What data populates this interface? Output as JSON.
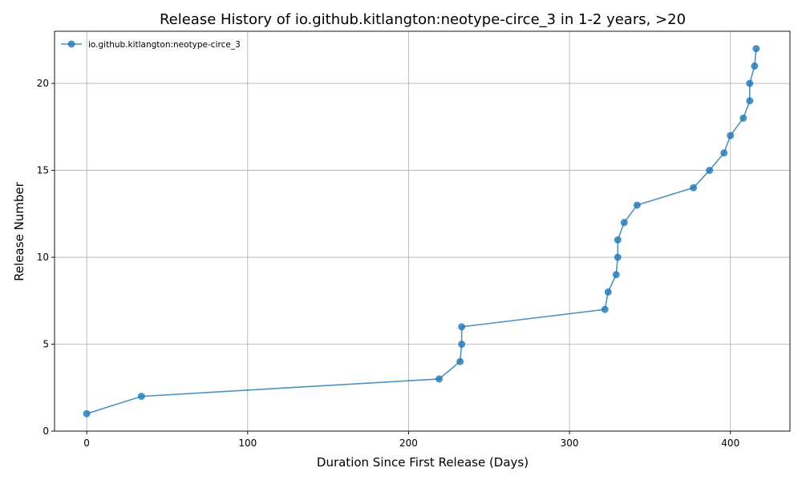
{
  "chart_data": {
    "type": "line",
    "title": "Release History of io.github.kitlangton:neotype-circe_3 in 1-2 years, >20",
    "xlabel": "Duration Since First Release (Days)",
    "ylabel": "Release Number",
    "xlim": [
      -20,
      437
    ],
    "ylim": [
      0,
      23
    ],
    "xticks": [
      0,
      100,
      200,
      300,
      400
    ],
    "yticks": [
      0,
      5,
      10,
      15,
      20
    ],
    "grid": true,
    "legend_position": "top-left",
    "series": [
      {
        "name": "io.github.kitlangton:neotype-circe_3",
        "color": "#1f77b4",
        "marker": "circle",
        "x": [
          0,
          34,
          219,
          232,
          233,
          233,
          322,
          324,
          329,
          330,
          330,
          334,
          342,
          377,
          387,
          396,
          400,
          408,
          412,
          412,
          415,
          416
        ],
        "y": [
          1,
          2,
          3,
          4,
          5,
          6,
          7,
          8,
          9,
          10,
          11,
          12,
          13,
          14,
          15,
          16,
          17,
          18,
          19,
          20,
          21,
          22
        ]
      }
    ]
  }
}
